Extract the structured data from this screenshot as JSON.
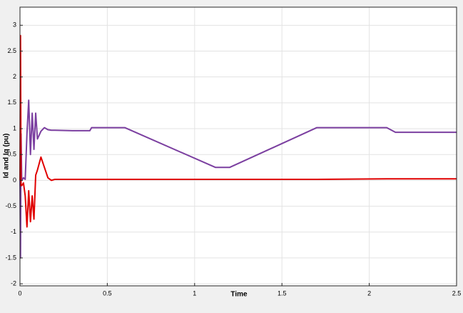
{
  "chart_data": {
    "type": "line",
    "x_label": "Time",
    "y_label": "Id and Iq (pu)",
    "x": [
      0,
      0.003,
      0.006,
      0.01,
      0.02,
      0.03,
      0.04,
      0.05,
      0.06,
      0.07,
      0.08,
      0.09,
      0.1,
      0.12,
      0.14,
      0.16,
      0.18,
      0.2,
      0.3,
      0.4,
      0.41,
      0.6,
      1.12,
      1.2,
      1.7,
      2.1,
      2.15,
      2.5
    ],
    "series": [
      {
        "color": "#7b3fa0",
        "values": [
          0,
          -1.5,
          0.9,
          0,
          0.05,
          0.02,
          0.9,
          1.55,
          0.5,
          1.3,
          0.6,
          1.3,
          0.8,
          0.95,
          1.02,
          0.98,
          0.97,
          0.97,
          0.96,
          0.96,
          1.02,
          1.02,
          0.25,
          0.25,
          1.02,
          1.02,
          0.93,
          0.93
        ]
      },
      {
        "color": "#e00000",
        "values": [
          0,
          2.8,
          -0.1,
          -0.1,
          -0.05,
          -0.3,
          -0.9,
          -0.2,
          -0.8,
          -0.3,
          -0.75,
          0.1,
          0.2,
          0.45,
          0.25,
          0.05,
          0,
          0.02,
          0.02,
          0.02,
          0.02,
          0.02,
          0.02,
          0.02,
          0.02,
          0.03,
          0.03,
          0.03
        ]
      }
    ],
    "xlim": [
      0,
      2.5
    ],
    "xticks": [
      0,
      0.5,
      1,
      1.5,
      2,
      2.5
    ],
    "ylim": [
      -2.04,
      3.35
    ],
    "yticks": [
      -2,
      -1.5,
      -1,
      -0.5,
      0,
      0.5,
      1,
      1.5,
      2,
      2.5,
      3
    ],
    "grid": true
  }
}
